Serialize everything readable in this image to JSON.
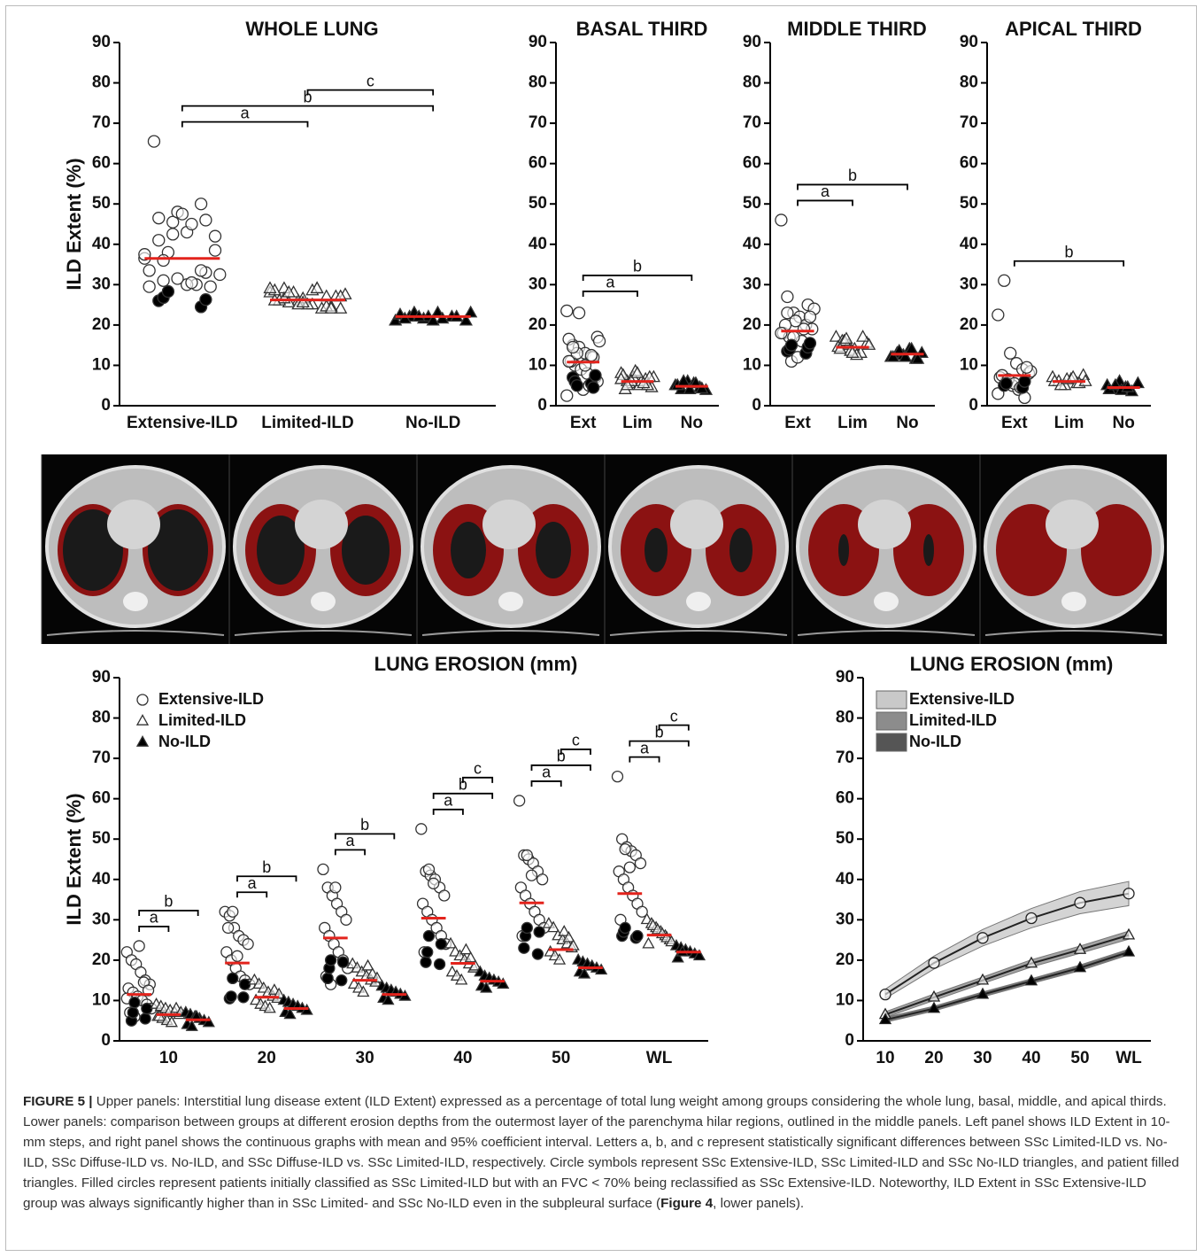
{
  "chart_data": [
    {
      "type": "strip",
      "title": "WHOLE LUNG",
      "ylabel": "ILD Extent (%)",
      "categories": [
        "Extensive-ILD",
        "Limited-ILD",
        "No-ILD"
      ],
      "markers": [
        "circle",
        "triangle",
        "triangle-filled"
      ],
      "points": [
        [
          36.5,
          46.5,
          45.5,
          43,
          50,
          38.5,
          33.5,
          31,
          48,
          45,
          33,
          32.5,
          65.5,
          38,
          47.5,
          30,
          29.5,
          37.5,
          41,
          42.5,
          30,
          33.5,
          42,
          29.5,
          36,
          31.5,
          30.5,
          46
        ],
        [
          28,
          29,
          26,
          25,
          27,
          24,
          28.5,
          25.5,
          26.5,
          29,
          24.5,
          27.5,
          26,
          28,
          25,
          24,
          27,
          29,
          26.5,
          25,
          28.5,
          24.5,
          27,
          26,
          28,
          25.5,
          29,
          24
        ],
        [
          21,
          22,
          21.5,
          23,
          22,
          21,
          22.5,
          23,
          22,
          21.5,
          22,
          23,
          21.5,
          22,
          21
        ]
      ],
      "filled_points": [
        [
          26,
          24.5,
          26.8,
          26.3,
          28.3
        ],
        [],
        []
      ],
      "means": [
        36.5,
        26.2,
        22.1
      ],
      "mean_color": "#e3231c",
      "comparisons": [
        {
          "label": "a",
          "from": 0,
          "to": 1
        },
        {
          "label": "b",
          "from": 0,
          "to": 2
        },
        {
          "label": "c",
          "from": 1,
          "to": 2
        }
      ],
      "ylim": [
        0,
        90
      ],
      "yticks": [
        0,
        10,
        20,
        30,
        40,
        50,
        60,
        70,
        80,
        90
      ]
    },
    {
      "type": "strip",
      "title": "BASAL  THIRD",
      "categories": [
        "Ext",
        "Lim",
        "No"
      ],
      "markers": [
        "circle",
        "triangle",
        "triangle-filled"
      ],
      "points": [
        [
          23.5,
          15,
          14.5,
          13,
          12,
          17,
          16.5,
          10,
          9,
          8,
          12,
          16,
          11,
          13,
          4,
          5,
          7,
          2.5,
          14.5,
          23,
          10,
          12.5,
          6,
          11
        ],
        [
          8,
          6,
          7,
          5,
          6.5,
          4.5,
          7.5,
          5.5,
          8.5,
          6,
          5,
          7,
          4,
          6,
          8,
          5.5,
          7,
          6.5,
          5
        ],
        [
          5,
          4,
          6,
          5.5,
          4.5,
          3.8,
          5,
          6,
          4,
          5.5,
          4.2
        ]
      ],
      "filled_points": [
        [
          7,
          5.5,
          6,
          4.5,
          5,
          7.5
        ],
        [],
        []
      ],
      "means": [
        10.8,
        6,
        4.8
      ],
      "mean_color": "#e3231c",
      "comparisons": [
        {
          "label": "a",
          "from": 0,
          "to": 1
        },
        {
          "label": "b",
          "from": 0,
          "to": 2
        }
      ],
      "ylim": [
        0,
        90
      ],
      "yticks": [
        0,
        10,
        20,
        30,
        40,
        50,
        60,
        70,
        80,
        90
      ]
    },
    {
      "type": "strip",
      "title": "MIDDLE  THIRD",
      "categories": [
        "Ext",
        "Lim",
        "No"
      ],
      "markers": [
        "circle",
        "triangle",
        "triangle-filled"
      ],
      "points": [
        [
          46,
          27,
          23,
          22,
          20,
          19,
          18,
          17,
          21,
          16,
          25,
          24,
          20,
          11,
          12,
          19,
          22,
          18,
          23,
          17
        ],
        [
          17,
          16,
          15,
          14,
          13,
          15.5,
          14.5,
          16,
          13.5,
          12.5,
          17,
          15,
          14,
          16.5,
          13
        ],
        [
          12,
          13,
          12.5,
          14,
          11.5,
          13,
          12,
          13.5,
          12,
          14,
          11.5
        ]
      ],
      "filled_points": [
        [
          13.5,
          13,
          14,
          14.5,
          15,
          15.5
        ],
        [],
        []
      ],
      "means": [
        18.5,
        14.5,
        12.8
      ],
      "mean_color": "#e3231c",
      "comparisons": [
        {
          "label": "a",
          "from": 0,
          "to": 1
        },
        {
          "label": "b",
          "from": 0,
          "to": 2
        }
      ],
      "ylim": [
        0,
        90
      ],
      "yticks": [
        0,
        10,
        20,
        30,
        40,
        50,
        60,
        70,
        80,
        90
      ]
    },
    {
      "type": "strip",
      "title": "APICAL  THIRD",
      "categories": [
        "Ext",
        "Lim",
        "No"
      ],
      "markers": [
        "circle",
        "triangle",
        "triangle-filled"
      ],
      "points": [
        [
          22.5,
          31,
          13,
          10.5,
          9,
          8,
          7,
          6,
          5,
          4,
          2,
          8.5,
          7.5,
          6.5,
          5.5,
          4.5,
          9.5,
          3
        ],
        [
          7,
          6,
          5,
          6.5,
          5.5,
          7.5,
          6,
          5,
          6.5,
          7,
          5.5,
          6
        ],
        [
          5,
          4,
          6,
          4.5,
          3.5,
          5.5,
          4,
          5,
          3.8,
          4.5
        ]
      ],
      "filled_points": [
        [
          5,
          4.5,
          5.5,
          6
        ],
        [],
        []
      ],
      "means": [
        7.5,
        6,
        4.5
      ],
      "mean_color": "#e3231c",
      "comparisons": [
        {
          "label": "b",
          "from": 0,
          "to": 2
        }
      ],
      "ylim": [
        0,
        90
      ],
      "yticks": [
        0,
        10,
        20,
        30,
        40,
        50,
        60,
        70,
        80,
        90
      ]
    },
    {
      "type": "grouped-strip",
      "title": "LUNG EROSION (mm)",
      "ylabel": "ILD Extent (%)",
      "categories": [
        "10",
        "20",
        "30",
        "40",
        "50",
        "WL"
      ],
      "series": [
        {
          "name": "Extensive-ILD",
          "marker": "circle",
          "points": [
            [
              22,
              20,
              19,
              17,
              15,
              14,
              13,
              12,
              11,
              10,
              9,
              8,
              7,
              6,
              23.5,
              14.5,
              12.5,
              10.5
            ],
            [
              32,
              31,
              28,
              26,
              25,
              24,
              22,
              20,
              18,
              16,
              15,
              14,
              28,
              32,
              21
            ],
            [
              42.5,
              38,
              36,
              34,
              32,
              30,
              28,
              26,
              24,
              22,
              20,
              18,
              16,
              14,
              38
            ],
            [
              52.5,
              42,
              41,
              40,
              38,
              36,
              34,
              32,
              30,
              28,
              26,
              24,
              22,
              42.5,
              39
            ],
            [
              59.5,
              46,
              45,
              44,
              42,
              40,
              38,
              36,
              34,
              32,
              30,
              28,
              26,
              46,
              41
            ],
            [
              65.5,
              50,
              48,
              47,
              46,
              44,
              42,
              40,
              38,
              36,
              34,
              32,
              30,
              47.5,
              43
            ]
          ],
          "filled_points": [
            [
              5,
              5.5,
              7,
              8,
              9.5
            ],
            [
              10.5,
              10.8,
              11,
              14,
              15.5
            ],
            [
              15.5,
              15,
              18,
              19.5,
              20
            ],
            [
              19.5,
              19,
              22,
              24,
              26
            ],
            [
              23,
              21.5,
              26,
              27,
              28
            ],
            [
              26,
              25.5,
              27,
              26,
              28
            ]
          ],
          "means": [
            11.5,
            19.3,
            25.5,
            30.4,
            34.2,
            36.5
          ]
        },
        {
          "name": "Limited-ILD",
          "marker": "triangle",
          "points": [
            [
              9,
              8.5,
              8,
              7.5,
              7,
              6.5,
              6,
              5.5,
              5,
              4.5,
              8,
              7,
              6
            ],
            [
              15,
              14,
              13,
              12,
              11,
              10.5,
              10,
              9,
              8.5,
              8,
              12.5,
              11.5
            ],
            [
              19,
              18,
              17,
              16,
              15,
              14.5,
              14,
              13,
              12,
              18.5,
              16.5,
              15.5
            ],
            [
              24,
              22,
              21,
              20,
              19,
              18,
              17,
              16,
              15,
              22.5,
              20.5,
              18.5
            ],
            [
              29,
              28,
              26,
              25,
              24,
              23,
              22,
              21,
              20,
              27,
              25.5,
              23.5
            ],
            [
              30,
              29,
              28,
              27,
              26,
              25,
              24,
              28.5,
              27.5,
              26.5,
              25.5,
              24.5
            ]
          ],
          "means": [
            6.5,
            10.8,
            15,
            19.2,
            22.6,
            26.2
          ]
        },
        {
          "name": "No-ILD",
          "marker": "triangle-filled",
          "points": [
            [
              7,
              6.5,
              6,
              5.5,
              5,
              4.5,
              4,
              3.5,
              6
            ],
            [
              10,
              9.5,
              9,
              8.5,
              8,
              7.5,
              7,
              6.5
            ],
            [
              13.5,
              13,
              12.5,
              12,
              11.5,
              11,
              10.5,
              10
            ],
            [
              17,
              16,
              15.5,
              15,
              14.5,
              14,
              13.5,
              13
            ],
            [
              20,
              19.5,
              19,
              18.5,
              18,
              17.5,
              17,
              16.5
            ],
            [
              23.5,
              23,
              22.5,
              22,
              21.5,
              21,
              20.5,
              22
            ]
          ],
          "means": [
            5.2,
            8,
            11.5,
            14.8,
            18.1,
            22
          ]
        }
      ],
      "mean_color": "#e3231c",
      "comparisons": [
        {
          "category": 0,
          "label": "a",
          "from": 0,
          "to": 1
        },
        {
          "category": 0,
          "label": "b",
          "from": 0,
          "to": 2
        },
        {
          "category": 1,
          "label": "a",
          "from": 0,
          "to": 1
        },
        {
          "category": 1,
          "label": "b",
          "from": 0,
          "to": 2
        },
        {
          "category": 2,
          "label": "a",
          "from": 0,
          "to": 1
        },
        {
          "category": 2,
          "label": "b",
          "from": 0,
          "to": 2
        },
        {
          "category": 3,
          "label": "a",
          "from": 0,
          "to": 1
        },
        {
          "category": 3,
          "label": "b",
          "from": 0,
          "to": 2
        },
        {
          "category": 3,
          "label": "c",
          "from": 1,
          "to": 2
        },
        {
          "category": 4,
          "label": "a",
          "from": 0,
          "to": 1
        },
        {
          "category": 4,
          "label": "b",
          "from": 0,
          "to": 2
        },
        {
          "category": 4,
          "label": "c",
          "from": 1,
          "to": 2
        },
        {
          "category": 5,
          "label": "a",
          "from": 0,
          "to": 1
        },
        {
          "category": 5,
          "label": "b",
          "from": 0,
          "to": 2
        },
        {
          "category": 5,
          "label": "c",
          "from": 1,
          "to": 2
        }
      ],
      "legend": "upper left",
      "ylim": [
        0,
        90
      ],
      "yticks": [
        0,
        10,
        20,
        30,
        40,
        50,
        60,
        70,
        80,
        90
      ]
    },
    {
      "type": "line-band",
      "title": "LUNG EROSION (mm)",
      "categories": [
        "10",
        "20",
        "30",
        "40",
        "50",
        "WL"
      ],
      "series": [
        {
          "name": "Extensive-ILD",
          "marker": "circle",
          "color": "#222222",
          "band_color": "#c9c9c9",
          "values": [
            11.5,
            19.3,
            25.5,
            30.4,
            34.2,
            36.5
          ],
          "lower": [
            10.5,
            17.8,
            23.5,
            28,
            31.5,
            33.5
          ],
          "upper": [
            12.8,
            21,
            27.6,
            32.8,
            37,
            39.5
          ]
        },
        {
          "name": "Limited-ILD",
          "marker": "triangle",
          "color": "#222222",
          "band_color": "#8c8c8c",
          "values": [
            6.5,
            10.8,
            15,
            19.2,
            22.6,
            26.2
          ],
          "lower": [
            5.8,
            10,
            14.2,
            18.3,
            21.7,
            25.2
          ],
          "upper": [
            7.2,
            11.6,
            15.8,
            20.1,
            23.5,
            27.2
          ]
        },
        {
          "name": "No-ILD",
          "marker": "triangle-filled",
          "color": "#222222",
          "band_color": "#555555",
          "values": [
            5.2,
            8,
            11.5,
            14.8,
            18.1,
            22
          ],
          "lower": [
            4.6,
            7.4,
            10.9,
            14.2,
            17.4,
            21.3
          ],
          "upper": [
            5.8,
            8.6,
            12.1,
            15.4,
            18.8,
            22.7
          ]
        }
      ],
      "legend": "upper left",
      "ylim": [
        0,
        90
      ],
      "yticks": [
        0,
        10,
        20,
        30,
        40,
        50,
        60,
        70,
        80,
        90
      ]
    }
  ],
  "caption": {
    "label": "FIGURE 5 |",
    "text_before": " Upper panels: Interstitial lung disease extent (ILD Extent) expressed as a percentage of total lung weight among groups considering the whole lung, basal, middle, and apical thirds. Lower panels: comparison between groups at different erosion depths from the outermost layer of the parenchyma hilar regions, outlined in the middle panels. Left panel shows ILD Extent in 10-mm steps, and right panel shows the continuous graphs with mean and 95% coefficient interval. Letters a, b, and c represent statistically significant differences between SSc Limited-ILD vs. No-ILD, SSc Diffuse-ILD vs. No-ILD, and SSc Diffuse-ILD vs. SSc Limited-ILD, respectively. Circle symbols represent SSc Extensive-ILD, SSc Limited-ILD and SSc No-ILD triangles, and patient filled triangles. Filled circles represent patients initially classified as SSc Limited-ILD but with an FVC < 70% being reclassified as SSc Extensive-ILD. Noteworthy, ILD Extent in SSc Extensive-ILD group was always significantly higher than in SSc Limited- and SSc No-ILD even in the subpleural surface (",
    "ref": "Figure 4",
    "text_after": ", lower panels)."
  }
}
